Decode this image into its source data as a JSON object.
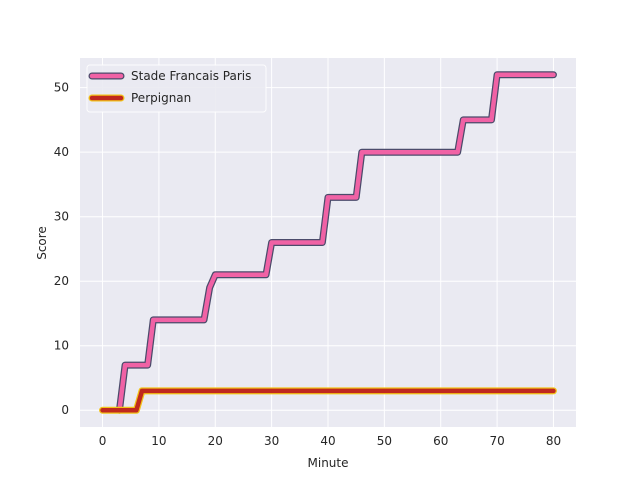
{
  "chart_data": {
    "type": "line",
    "title": "",
    "xlabel": "Minute",
    "ylabel": "Score",
    "xlim": [
      -4,
      84
    ],
    "ylim": [
      -2.6,
      54.6
    ],
    "xticks": [
      0,
      10,
      20,
      30,
      40,
      50,
      60,
      70,
      80
    ],
    "yticks": [
      0,
      10,
      20,
      30,
      40,
      50
    ],
    "grid": true,
    "legend_position": "top-left",
    "background": "#eaeaf2",
    "series": [
      {
        "name": "Stade Francais Paris",
        "color": "#f062a5",
        "edge_color": "#4b4b6b",
        "x": [
          3,
          4,
          5,
          6,
          7,
          8,
          9,
          10,
          11,
          12,
          13,
          14,
          15,
          16,
          17,
          18,
          19,
          20,
          21,
          22,
          23,
          24,
          25,
          26,
          27,
          28,
          29,
          30,
          31,
          32,
          33,
          34,
          35,
          36,
          37,
          38,
          39,
          40,
          41,
          42,
          43,
          44,
          45,
          46,
          47,
          48,
          49,
          50,
          51,
          52,
          53,
          54,
          55,
          56,
          57,
          58,
          59,
          60,
          61,
          62,
          63,
          64,
          65,
          66,
          67,
          68,
          69,
          70,
          71,
          72,
          73,
          74,
          75,
          76,
          77,
          78,
          79,
          80
        ],
        "values": [
          0,
          7,
          7,
          7,
          7,
          7,
          14,
          14,
          14,
          14,
          14,
          14,
          14,
          14,
          14,
          14,
          19,
          21,
          21,
          21,
          21,
          21,
          21,
          21,
          21,
          21,
          21,
          26,
          26,
          26,
          26,
          26,
          26,
          26,
          26,
          26,
          26,
          33,
          33,
          33,
          33,
          33,
          33,
          40,
          40,
          40,
          40,
          40,
          40,
          40,
          40,
          40,
          40,
          40,
          40,
          40,
          40,
          40,
          40,
          40,
          40,
          45,
          45,
          45,
          45,
          45,
          45,
          52,
          52,
          52,
          52,
          52,
          52,
          52,
          52,
          52,
          52,
          52
        ]
      },
      {
        "name": "Perpignan",
        "color": "#c0281e",
        "edge_color": "#f2c318",
        "x": [
          0,
          1,
          2,
          3,
          4,
          5,
          6,
          7,
          8,
          9,
          10,
          20,
          30,
          40,
          50,
          60,
          70,
          80
        ],
        "values": [
          0,
          0,
          0,
          0,
          0,
          0,
          0,
          3,
          3,
          3,
          3,
          3,
          3,
          3,
          3,
          3,
          3,
          3
        ]
      }
    ]
  }
}
